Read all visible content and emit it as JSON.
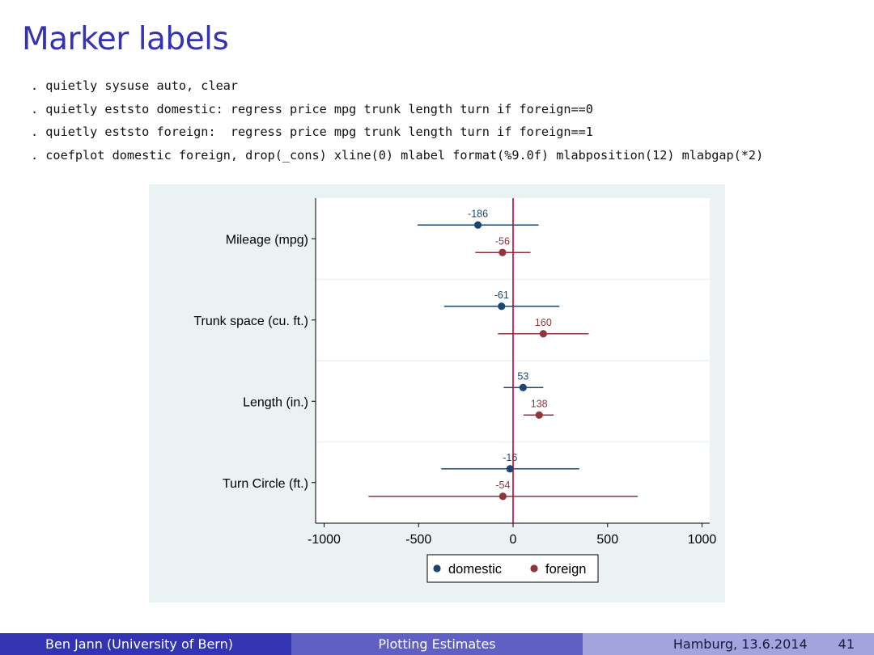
{
  "slide": {
    "title": "Marker labels",
    "code_lines": [
      ". quietly sysuse auto, clear",
      ". quietly eststo domestic: regress price mpg trunk length turn if foreign==0",
      ". quietly eststo foreign:  regress price mpg trunk length turn if foreign==1",
      ". coefplot domestic foreign, drop(_cons) xline(0) mlabel format(%9.0f) mlabposition(12) mlabgap(*2)"
    ]
  },
  "chart_data": {
    "type": "scatter",
    "subtype": "coefficient-plot",
    "title": "",
    "xlabel": "",
    "ylabel": "",
    "xlim": [
      -1050,
      1050
    ],
    "xticks": [
      -1000,
      -500,
      0,
      500,
      1000
    ],
    "xline": 0,
    "grid": "horizontal-separators",
    "legend_position": "bottom",
    "categories": [
      "Mileage (mpg)",
      "Trunk space (cu. ft.)",
      "Length (in.)",
      "Turn Circle (ft.)"
    ],
    "series": [
      {
        "name": "domestic",
        "color": "#1a476f",
        "values": [
          -186,
          -61,
          53,
          -16
        ],
        "labels": [
          "-186",
          "-61",
          "53",
          "-16"
        ],
        "ci_low": [
          -505,
          -365,
          -50,
          -380
        ],
        "ci_high": [
          135,
          245,
          160,
          350
        ]
      },
      {
        "name": "foreign",
        "color": "#90353b",
        "values": [
          -56,
          160,
          138,
          -54
        ],
        "labels": [
          "-56",
          "160",
          "138",
          "-54"
        ],
        "ci_low": [
          -200,
          -80,
          55,
          -765
        ],
        "ci_high": [
          92,
          400,
          215,
          660
        ]
      }
    ],
    "colors": {
      "panel_bg": "#eaf2f3",
      "plot_bg": "#ffffff",
      "xline": "#c10534"
    }
  },
  "footer": {
    "author": "Ben Jann  (University of Bern)",
    "talk_title": "Plotting Estimates",
    "place_date": "Hamburg, 13.6.2014",
    "page": "41"
  }
}
